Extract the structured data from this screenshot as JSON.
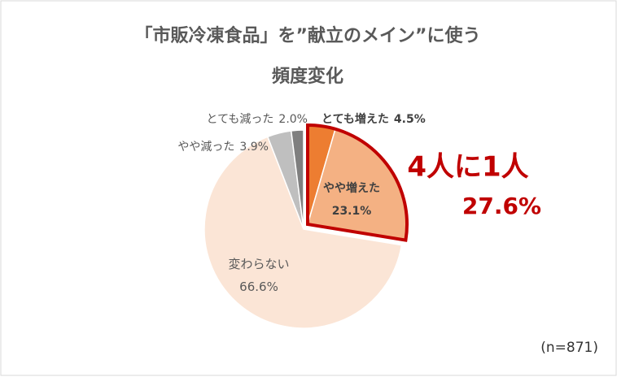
{
  "chart_data": {
    "type": "pie",
    "title": "「市販冷凍食品」を”献立のメイン”に使う",
    "subtitle": "頻度変化",
    "categories": [
      "とても増えた",
      "やや増えた",
      "変わらない",
      "やや減った",
      "とても減った"
    ],
    "values": [
      4.5,
      23.1,
      66.6,
      3.9,
      2.0
    ],
    "value_labels": [
      "4.5%",
      "23.1%",
      "66.6%",
      "3.9%",
      "2.0%"
    ],
    "colors": [
      "#ED7D31",
      "#F4B183",
      "#FBE5D6",
      "#BFBFBF",
      "#7F7F7F"
    ],
    "exploded": [
      true,
      true,
      false,
      false,
      false
    ],
    "annotation": {
      "text": "4人に1人",
      "value_label": "27.6%"
    },
    "note": "(n=871)"
  }
}
